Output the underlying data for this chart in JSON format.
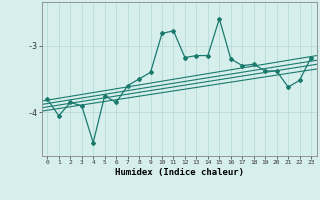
{
  "xlabel": "Humidex (Indice chaleur)",
  "ylabel": "",
  "background_color": "#d7efec",
  "grid_color": "#b8ddd8",
  "line_color": "#1a7a6e",
  "xlim": [
    -0.5,
    23.5
  ],
  "ylim": [
    -4.65,
    -2.35
  ],
  "yticks": [
    -4,
    -3
  ],
  "xticks": [
    0,
    1,
    2,
    3,
    4,
    5,
    6,
    7,
    8,
    9,
    10,
    11,
    12,
    13,
    14,
    15,
    16,
    17,
    18,
    19,
    20,
    21,
    22,
    23
  ],
  "series": [
    [
      0,
      -3.8
    ],
    [
      1,
      -4.05
    ],
    [
      2,
      -3.85
    ],
    [
      3,
      -3.9
    ],
    [
      4,
      -4.45
    ],
    [
      5,
      -3.75
    ],
    [
      6,
      -3.85
    ],
    [
      7,
      -3.6
    ],
    [
      8,
      -3.5
    ],
    [
      9,
      -3.4
    ],
    [
      10,
      -2.82
    ],
    [
      11,
      -2.78
    ],
    [
      12,
      -3.18
    ],
    [
      13,
      -3.15
    ],
    [
      14,
      -3.15
    ],
    [
      15,
      -2.6
    ],
    [
      16,
      -3.2
    ],
    [
      17,
      -3.3
    ],
    [
      18,
      -3.28
    ],
    [
      19,
      -3.38
    ],
    [
      20,
      -3.38
    ],
    [
      21,
      -3.62
    ],
    [
      22,
      -3.52
    ],
    [
      23,
      -3.18
    ]
  ],
  "trend_lines": [
    [
      [
        -0.5,
        -3.98
      ],
      [
        23.5,
        -3.35
      ]
    ],
    [
      [
        -0.5,
        -3.93
      ],
      [
        23.5,
        -3.28
      ]
    ],
    [
      [
        -0.5,
        -3.88
      ],
      [
        23.5,
        -3.22
      ]
    ],
    [
      [
        -0.5,
        -3.83
      ],
      [
        23.5,
        -3.15
      ]
    ]
  ]
}
